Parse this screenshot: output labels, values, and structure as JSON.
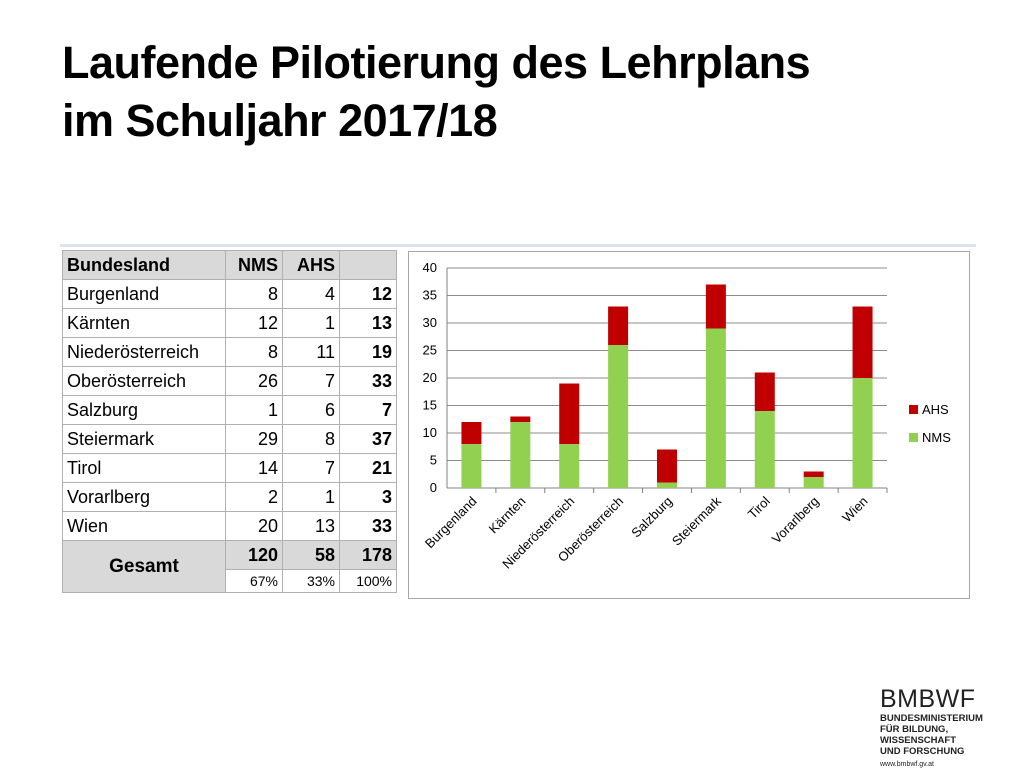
{
  "title": {
    "line1": "Laufende Pilotierung des Lehrplans",
    "line2": "im Schuljahr 2017/18"
  },
  "table": {
    "headers": [
      "Bundesland",
      "NMS",
      "AHS",
      ""
    ],
    "rows": [
      {
        "name": "Burgenland",
        "nms": "8",
        "ahs": "4",
        "total": "12"
      },
      {
        "name": "Kärnten",
        "nms": "12",
        "ahs": "1",
        "total": "13"
      },
      {
        "name": "Niederösterreich",
        "nms": "8",
        "ahs": "11",
        "total": "19"
      },
      {
        "name": "Oberösterreich",
        "nms": "26",
        "ahs": "7",
        "total": "33"
      },
      {
        "name": "Salzburg",
        "nms": "1",
        "ahs": "6",
        "total": "7"
      },
      {
        "name": "Steiermark",
        "nms": "29",
        "ahs": "8",
        "total": "37"
      },
      {
        "name": "Tirol",
        "nms": "14",
        "ahs": "7",
        "total": "21"
      },
      {
        "name": "Vorarlberg",
        "nms": "2",
        "ahs": "1",
        "total": "3"
      },
      {
        "name": "Wien",
        "nms": "20",
        "ahs": "13",
        "total": "33"
      }
    ],
    "total": {
      "label": "Gesamt",
      "nms": "120",
      "ahs": "58",
      "total": "178"
    },
    "percent": {
      "nms": "67%",
      "ahs": "33%",
      "total": "100%"
    }
  },
  "chart_data": {
    "type": "bar",
    "stacked": true,
    "categories": [
      "Burgenland",
      "Kärnten",
      "Niederösterreich",
      "Oberösterreich",
      "Salzburg",
      "Steiermark",
      "Tirol",
      "Vorarlberg",
      "Wien"
    ],
    "series": [
      {
        "name": "NMS",
        "color": "#92d050",
        "values": [
          8,
          12,
          8,
          26,
          1,
          29,
          14,
          2,
          20
        ]
      },
      {
        "name": "AHS",
        "color": "#c00000",
        "values": [
          4,
          1,
          11,
          7,
          6,
          8,
          7,
          1,
          13
        ]
      }
    ],
    "yticks": [
      "0",
      "5",
      "10",
      "15",
      "20",
      "25",
      "30",
      "35",
      "40"
    ],
    "ylim": [
      0,
      40
    ],
    "grid": true,
    "legend_position": "right",
    "legend_order": [
      "AHS",
      "NMS"
    ]
  },
  "logo": {
    "mark": "BMBWF",
    "line1": "BUNDESMINISTERIUM",
    "line2": "FÜR BILDUNG, WISSENSCHAFT",
    "line3": "UND FORSCHUNG",
    "url": "www.bmbwf.gv.at"
  }
}
